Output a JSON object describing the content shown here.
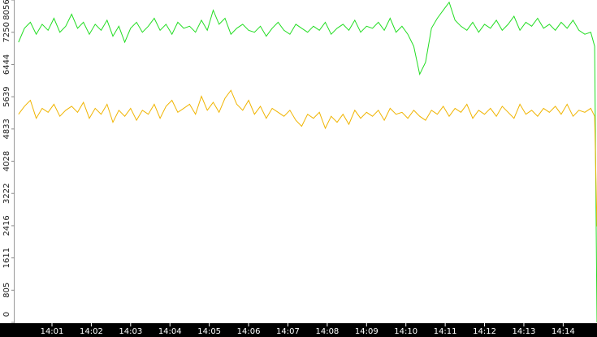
{
  "chart_data": {
    "type": "line",
    "xlim": [
      0.05,
      14.86
    ],
    "xticks": [
      {
        "value": 1,
        "label": "14:01"
      },
      {
        "value": 2,
        "label": "14:02"
      },
      {
        "value": 3,
        "label": "14:03"
      },
      {
        "value": 4,
        "label": "14:04"
      },
      {
        "value": 5,
        "label": "14:05"
      },
      {
        "value": 6,
        "label": "14:06"
      },
      {
        "value": 7,
        "label": "14:07"
      },
      {
        "value": 8,
        "label": "14:08"
      },
      {
        "value": 9,
        "label": "14:09"
      },
      {
        "value": 10,
        "label": "14:10"
      },
      {
        "value": 11,
        "label": "14:11"
      },
      {
        "value": 12,
        "label": "14:12"
      },
      {
        "value": 13,
        "label": "14:13"
      },
      {
        "value": 14,
        "label": "14:14"
      }
    ],
    "ylim": [
      0,
      8056
    ],
    "yticks": [
      0,
      805,
      1611,
      2416,
      3222,
      4028,
      4833,
      5639,
      6444,
      7250,
      8056
    ],
    "x": [
      0.15,
      0.3,
      0.45,
      0.6,
      0.75,
      0.9,
      1.05,
      1.2,
      1.35,
      1.5,
      1.65,
      1.8,
      1.95,
      2.1,
      2.25,
      2.4,
      2.55,
      2.7,
      2.85,
      3.0,
      3.15,
      3.3,
      3.45,
      3.6,
      3.75,
      3.9,
      4.05,
      4.2,
      4.35,
      4.5,
      4.65,
      4.8,
      4.95,
      5.1,
      5.25,
      5.4,
      5.55,
      5.7,
      5.85,
      6.0,
      6.15,
      6.3,
      6.45,
      6.6,
      6.75,
      6.9,
      7.05,
      7.2,
      7.35,
      7.5,
      7.65,
      7.8,
      7.95,
      8.1,
      8.25,
      8.4,
      8.55,
      8.7,
      8.85,
      9.0,
      9.15,
      9.3,
      9.45,
      9.6,
      9.75,
      9.9,
      10.05,
      10.2,
      10.35,
      10.5,
      10.65,
      10.8,
      10.95,
      11.1,
      11.25,
      11.4,
      11.55,
      11.7,
      11.85,
      12.0,
      12.15,
      12.3,
      12.45,
      12.6,
      12.75,
      12.9,
      13.05,
      13.2,
      13.35,
      13.5,
      13.65,
      13.8,
      13.95,
      14.1,
      14.25,
      14.4,
      14.55,
      14.7,
      14.8,
      14.86
    ],
    "series": [
      {
        "color": "#22dd22",
        "values": [
          7000,
          7350,
          7500,
          7200,
          7450,
          7300,
          7600,
          7250,
          7400,
          7700,
          7350,
          7500,
          7200,
          7450,
          7300,
          7550,
          7150,
          7400,
          7000,
          7350,
          7500,
          7250,
          7400,
          7600,
          7300,
          7450,
          7200,
          7500,
          7350,
          7400,
          7250,
          7550,
          7300,
          7800,
          7450,
          7600,
          7200,
          7350,
          7450,
          7300,
          7250,
          7400,
          7150,
          7350,
          7500,
          7300,
          7200,
          7450,
          7350,
          7250,
          7400,
          7300,
          7500,
          7200,
          7350,
          7450,
          7300,
          7550,
          7250,
          7400,
          7350,
          7500,
          7300,
          7600,
          7250,
          7400,
          7200,
          6900,
          6200,
          6500,
          7350,
          7600,
          7800,
          8000,
          7550,
          7400,
          7300,
          7500,
          7250,
          7450,
          7350,
          7550,
          7300,
          7450,
          7650,
          7300,
          7500,
          7400,
          7600,
          7350,
          7450,
          7300,
          7500,
          7350,
          7550,
          7300,
          7200,
          7250,
          6900,
          0
        ]
      },
      {
        "color": "#f0b400",
        "values": [
          5200,
          5400,
          5550,
          5100,
          5350,
          5250,
          5450,
          5150,
          5300,
          5400,
          5250,
          5500,
          5100,
          5350,
          5200,
          5450,
          5000,
          5300,
          5150,
          5350,
          5050,
          5300,
          5200,
          5450,
          5100,
          5400,
          5550,
          5250,
          5350,
          5450,
          5200,
          5650,
          5300,
          5500,
          5250,
          5600,
          5800,
          5450,
          5300,
          5550,
          5200,
          5400,
          5100,
          5350,
          5250,
          5150,
          5300,
          5050,
          4900,
          5200,
          5100,
          5250,
          4850,
          5150,
          5000,
          5200,
          4950,
          5300,
          5100,
          5250,
          5150,
          5300,
          5050,
          5350,
          5200,
          5250,
          5100,
          5300,
          5150,
          5050,
          5300,
          5200,
          5400,
          5150,
          5350,
          5250,
          5450,
          5100,
          5300,
          5200,
          5350,
          5150,
          5400,
          5250,
          5100,
          5450,
          5200,
          5300,
          5150,
          5350,
          5250,
          5400,
          5200,
          5450,
          5150,
          5300,
          5250,
          5350,
          5150,
          2400
        ]
      }
    ]
  }
}
